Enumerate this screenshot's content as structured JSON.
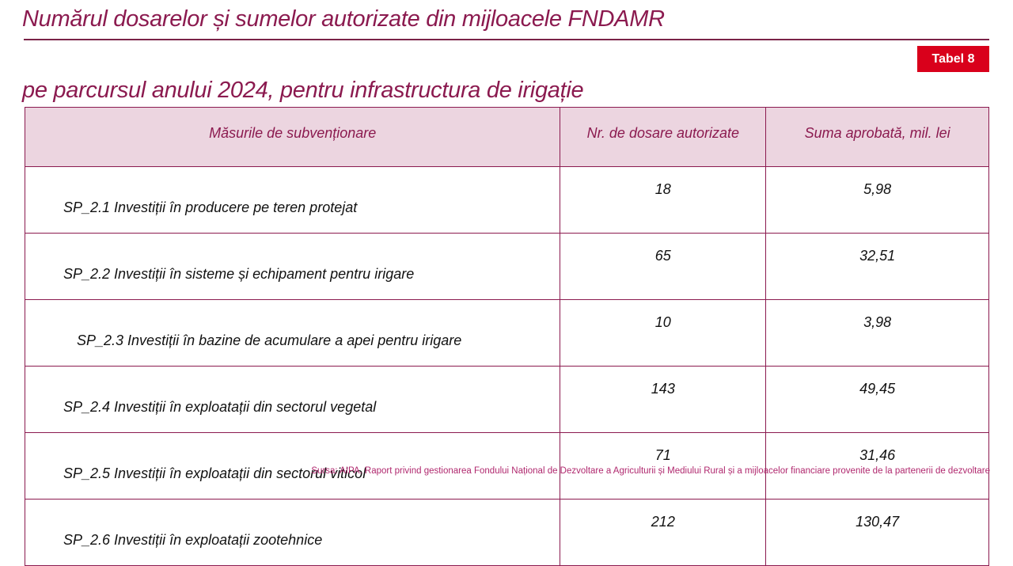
{
  "title_line1": "Numărul dosarelor și sumelor autorizate din mijloacele FNDAMR",
  "title_line2": "pe parcursul anului 2024, pentru infrastructura de irigație",
  "badge": "Tabel  8",
  "table": {
    "headers": [
      "Măsurile de subvenționare",
      "Nr. de dosare autorizate",
      "Suma aprobată, mil. lei"
    ],
    "rows": [
      {
        "measure": "SP_2.1 Investiții în producere pe teren protejat",
        "files": "18",
        "amount": "5,98"
      },
      {
        "measure": "SP_2.2 Investiții în sisteme și echipament pentru irigare",
        "files": "65",
        "amount": "32,51"
      },
      {
        "measure": "SP_2.3 Investiții în bazine de acumulare a apei pentru irigare",
        "files": "10",
        "amount": "3,98"
      },
      {
        "measure": "SP_2.4 Investiții în exploatații din sectorul vegetal",
        "files": "143",
        "amount": "49,45"
      },
      {
        "measure": "SP_2.5 Investiții în exploatații din sectorul viticol",
        "files": "71",
        "amount": "31,46"
      },
      {
        "measure": "SP_2.6 Investiții în exploatații zootehnice",
        "files": "212",
        "amount": "130,47"
      }
    ]
  },
  "source": "Sursa: AIPA. Raport privind gestionarea Fondului Național de Dezvoltare a Agriculturii și Mediului Rural și a mijloacelor financiare provenite de la partenerii de dezvoltare"
}
